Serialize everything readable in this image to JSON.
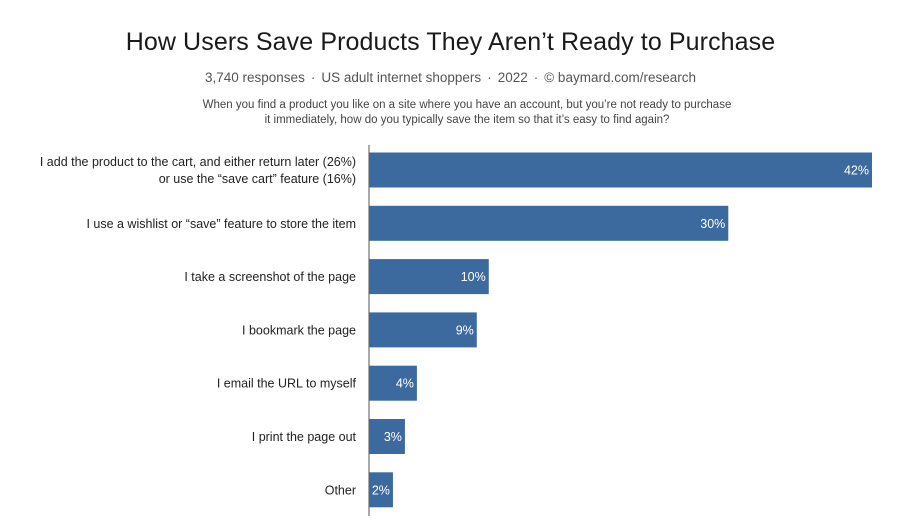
{
  "chart_data": {
    "type": "bar",
    "orientation": "horizontal",
    "title": "How Users Save Products They Aren’t Ready to Purchase",
    "subtitle": {
      "responses": "3,740 responses",
      "audience": "US adult internet shoppers",
      "year": "2022",
      "source": "©  baymard.com/research"
    },
    "question": "When you find a product you like on a site where you have an account, but you’re not ready to purchase it immediately, how do you typically save the item so that it’s easy to find again?",
    "categories": [
      [
        "I add the product to the cart, and either return later (26%)",
        "or use the “save cart” feature (16%)"
      ],
      [
        "I use a wishlist or “save” feature to store the item"
      ],
      [
        "I take a screenshot of the page"
      ],
      [
        "I bookmark the page"
      ],
      [
        "I email the URL to myself"
      ],
      [
        "I print the page out"
      ],
      [
        "Other"
      ]
    ],
    "values": [
      42,
      30,
      10,
      9,
      4,
      3,
      2
    ],
    "value_labels": [
      "42%",
      "30%",
      "10%",
      "9%",
      "4%",
      "3%",
      "2%"
    ],
    "xlim": [
      0,
      42
    ],
    "bar_color": "#3d6a9e",
    "axis_color": "#555555"
  }
}
